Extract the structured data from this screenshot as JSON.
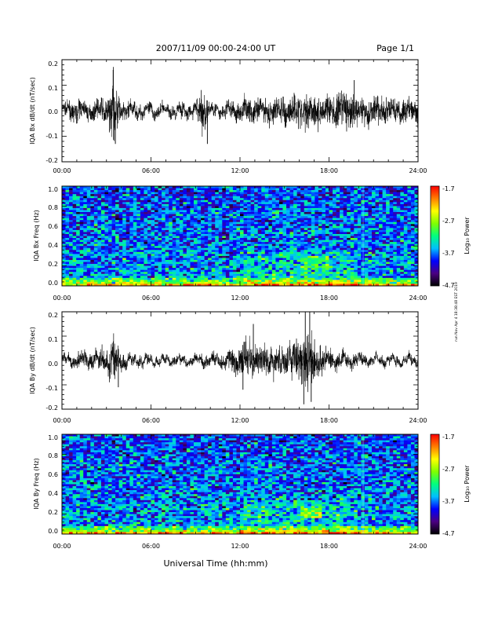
{
  "header": {
    "title": "2007/11/09  00:00-24:00 UT",
    "page": "Page 1/1"
  },
  "side_note": "run Nov Apr 4 18:38:48 EST 2019",
  "xlabel": "Universal Time (hh:mm)",
  "colorbar": {
    "label": "Log₁₀ Power",
    "ticks": [
      "-1.7",
      "-2.7",
      "-3.7",
      "-4.7"
    ],
    "range": [
      -4.7,
      -1.7
    ],
    "colors": [
      "#000000",
      "#4b0082",
      "#0000ff",
      "#00bfff",
      "#00ff7f",
      "#7fff00",
      "#ffff00",
      "#ff7f00",
      "#ff0000"
    ]
  },
  "chart_data": [
    {
      "type": "line",
      "ylabel": "IQA Bx dB/dt (nT/sec)",
      "xlim": [
        "00:00",
        "24:00"
      ],
      "xticks": [
        "00:00",
        "06:00",
        "12:00",
        "18:00",
        "24:00"
      ],
      "ylim": [
        -0.2,
        0.2
      ],
      "yticks": [
        "0.2",
        "0.1",
        "0.0",
        "-0.1",
        "-0.2"
      ],
      "series": [
        {
          "x_hours": [
            0,
            1,
            2,
            3,
            3.5,
            4,
            5,
            6,
            7,
            8,
            9,
            9.5,
            10,
            11,
            12,
            13,
            14,
            15,
            16,
            17,
            18,
            19,
            20,
            21,
            22,
            23,
            24
          ],
          "amplitude": [
            0.02,
            0.04,
            0.03,
            0.05,
            0.13,
            0.04,
            0.03,
            0.03,
            0.02,
            0.03,
            0.03,
            0.1,
            0.03,
            0.03,
            0.04,
            0.05,
            0.05,
            0.06,
            0.07,
            0.07,
            0.06,
            0.08,
            0.06,
            0.06,
            0.05,
            0.05,
            0.04
          ]
        }
      ],
      "peaks": [
        {
          "x": 3.45,
          "y": 0.16
        },
        {
          "x": 3.6,
          "y": -0.13
        },
        {
          "x": 9.8,
          "y": -0.13
        },
        {
          "x": 19.7,
          "y": 0.12
        }
      ]
    },
    {
      "type": "heatmap",
      "ylabel": "IQA Bx Freq (Hz)",
      "xticks": [
        "00:00",
        "06:00",
        "12:00",
        "18:00",
        "24:00"
      ],
      "ylim": [
        0,
        1.0
      ],
      "yticks": [
        "1.0",
        "0.8",
        "0.6",
        "0.4",
        "0.2",
        "0.0"
      ],
      "zlim": [
        -4.7,
        -1.7
      ]
    },
    {
      "type": "line",
      "ylabel": "IQA By dB/dt (nT/sec)",
      "xlim": [
        "00:00",
        "24:00"
      ],
      "xticks": [
        "00:00",
        "06:00",
        "12:00",
        "18:00",
        "24:00"
      ],
      "ylim": [
        -0.2,
        0.2
      ],
      "yticks": [
        "0.2",
        "0.1",
        "0.0",
        "-0.1",
        "-0.2"
      ],
      "series": [
        {
          "x_hours": [
            0,
            1,
            2,
            3,
            3.5,
            4,
            5,
            6,
            7,
            8,
            9,
            10,
            11,
            12,
            12.5,
            13,
            14,
            15,
            16,
            16.5,
            17,
            18,
            19,
            20,
            21,
            22,
            23,
            24
          ],
          "amplitude": [
            0.02,
            0.03,
            0.04,
            0.05,
            0.08,
            0.03,
            0.02,
            0.02,
            0.02,
            0.02,
            0.02,
            0.03,
            0.03,
            0.07,
            0.1,
            0.06,
            0.07,
            0.06,
            0.1,
            0.14,
            0.08,
            0.04,
            0.03,
            0.03,
            0.02,
            0.02,
            0.02,
            0.02
          ]
        }
      ],
      "peaks": [
        {
          "x": 12.9,
          "y": 0.15
        },
        {
          "x": 16.4,
          "y": 0.2
        },
        {
          "x": 16.7,
          "y": 0.2
        },
        {
          "x": 16.3,
          "y": -0.18
        },
        {
          "x": 16.8,
          "y": -0.17
        },
        {
          "x": 12.2,
          "y": -0.12
        },
        {
          "x": 3.8,
          "y": -0.11
        }
      ]
    },
    {
      "type": "heatmap",
      "ylabel": "IQA By Freq (Hz)",
      "xticks": [
        "00:00",
        "06:00",
        "12:00",
        "18:00",
        "24:00"
      ],
      "ylim": [
        0,
        1.0
      ],
      "yticks": [
        "1.0",
        "0.8",
        "0.6",
        "0.4",
        "0.2",
        "0.0"
      ],
      "zlim": [
        -4.7,
        -1.7
      ]
    }
  ]
}
